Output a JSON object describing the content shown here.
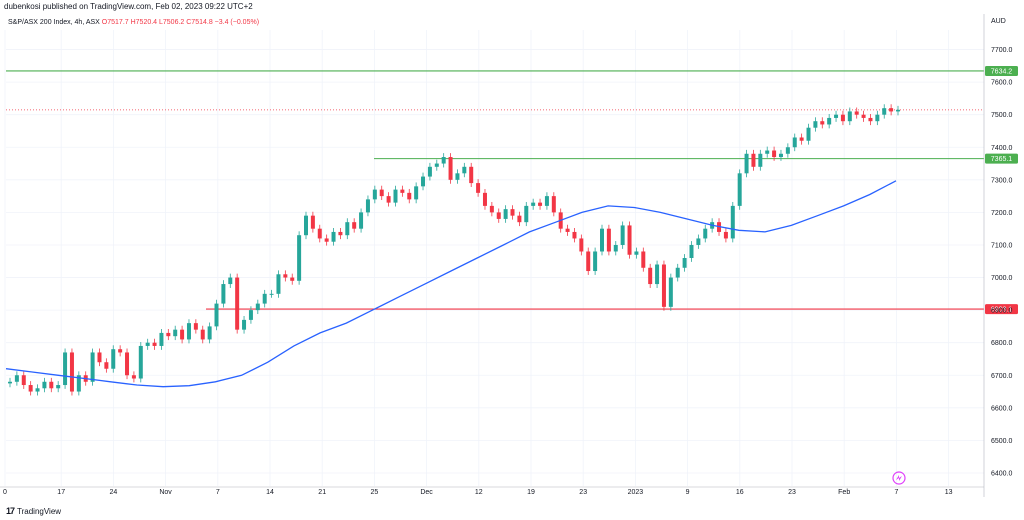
{
  "publisher": "dubenkosi published on TradingView.com, Feb 02, 2023 09:22 UTC+2",
  "symbol": {
    "name": "S&P/ASX 200 Index, 4h, ASX",
    "ohlc": "O7517.7  H7520.4  L7506.2  C7514.8  −3.4 (−0.05%)"
  },
  "currency": "AUD",
  "branding": "TradingView",
  "colors": {
    "up": "#26a69a",
    "down": "#f23645",
    "ma": "#2962ff",
    "resistance": "#4caf50",
    "support": "#f23645"
  },
  "chart_data": {
    "type": "candlestick",
    "title": "S&P/ASX 200 Index, 4h, ASX",
    "ylabel": "AUD",
    "ylim": [
      6360,
      7760
    ],
    "y_ticks": [
      6400,
      6500,
      6600,
      6700,
      6800,
      6900,
      7000,
      7100,
      7200,
      7300,
      7400,
      7500,
      7600,
      7700
    ],
    "x_ticks": [
      "0",
      "17",
      "24",
      "Nov",
      "7",
      "14",
      "21",
      "25",
      "Dec",
      "12",
      "19",
      "23",
      "2023",
      "9",
      "16",
      "23",
      "Feb",
      "7",
      "13"
    ],
    "grid": true,
    "levels": [
      {
        "label": "7634.2",
        "value": 7634.2,
        "kind": "resistance"
      },
      {
        "label": "7365.1",
        "value": 7365.1,
        "kind": "resistance"
      },
      {
        "label": "6903.1",
        "value": 6903.1,
        "kind": "support"
      }
    ],
    "last_price": 7514.8,
    "candles_close": [
      6680,
      6700,
      6670,
      6650,
      6660,
      6680,
      6660,
      6670,
      6770,
      6650,
      6700,
      6680,
      6770,
      6740,
      6720,
      6780,
      6770,
      6700,
      6690,
      6790,
      6800,
      6790,
      6830,
      6820,
      6840,
      6810,
      6860,
      6840,
      6810,
      6850,
      6920,
      6980,
      7000,
      6840,
      6870,
      6900,
      6920,
      6950,
      6950,
      7010,
      7000,
      6990,
      7130,
      7190,
      7150,
      7120,
      7110,
      7140,
      7130,
      7170,
      7150,
      7200,
      7240,
      7270,
      7250,
      7230,
      7270,
      7260,
      7240,
      7280,
      7310,
      7340,
      7350,
      7370,
      7300,
      7320,
      7340,
      7290,
      7260,
      7220,
      7200,
      7180,
      7210,
      7190,
      7170,
      7220,
      7230,
      7220,
      7250,
      7200,
      7150,
      7140,
      7120,
      7080,
      7020,
      7080,
      7150,
      7080,
      7100,
      7160,
      7070,
      7080,
      7030,
      6980,
      7040,
      6910,
      7000,
      7030,
      7060,
      7100,
      7120,
      7150,
      7170,
      7140,
      7120,
      7220,
      7320,
      7380,
      7340,
      7380,
      7390,
      7370,
      7380,
      7400,
      7430,
      7420,
      7460,
      7480,
      7470,
      7490,
      7500,
      7480,
      7510,
      7500,
      7490,
      7480,
      7500,
      7520,
      7510,
      7515
    ],
    "ma_series": [
      6720,
      6710,
      6700,
      6690,
      6680,
      6670,
      6665,
      6668,
      6680,
      6700,
      6740,
      6790,
      6830,
      6860,
      6900,
      6940,
      6980,
      7020,
      7060,
      7100,
      7140,
      7170,
      7200,
      7220,
      7215,
      7200,
      7180,
      7160,
      7145,
      7140,
      7160,
      7190,
      7220,
      7255,
      7297
    ]
  }
}
